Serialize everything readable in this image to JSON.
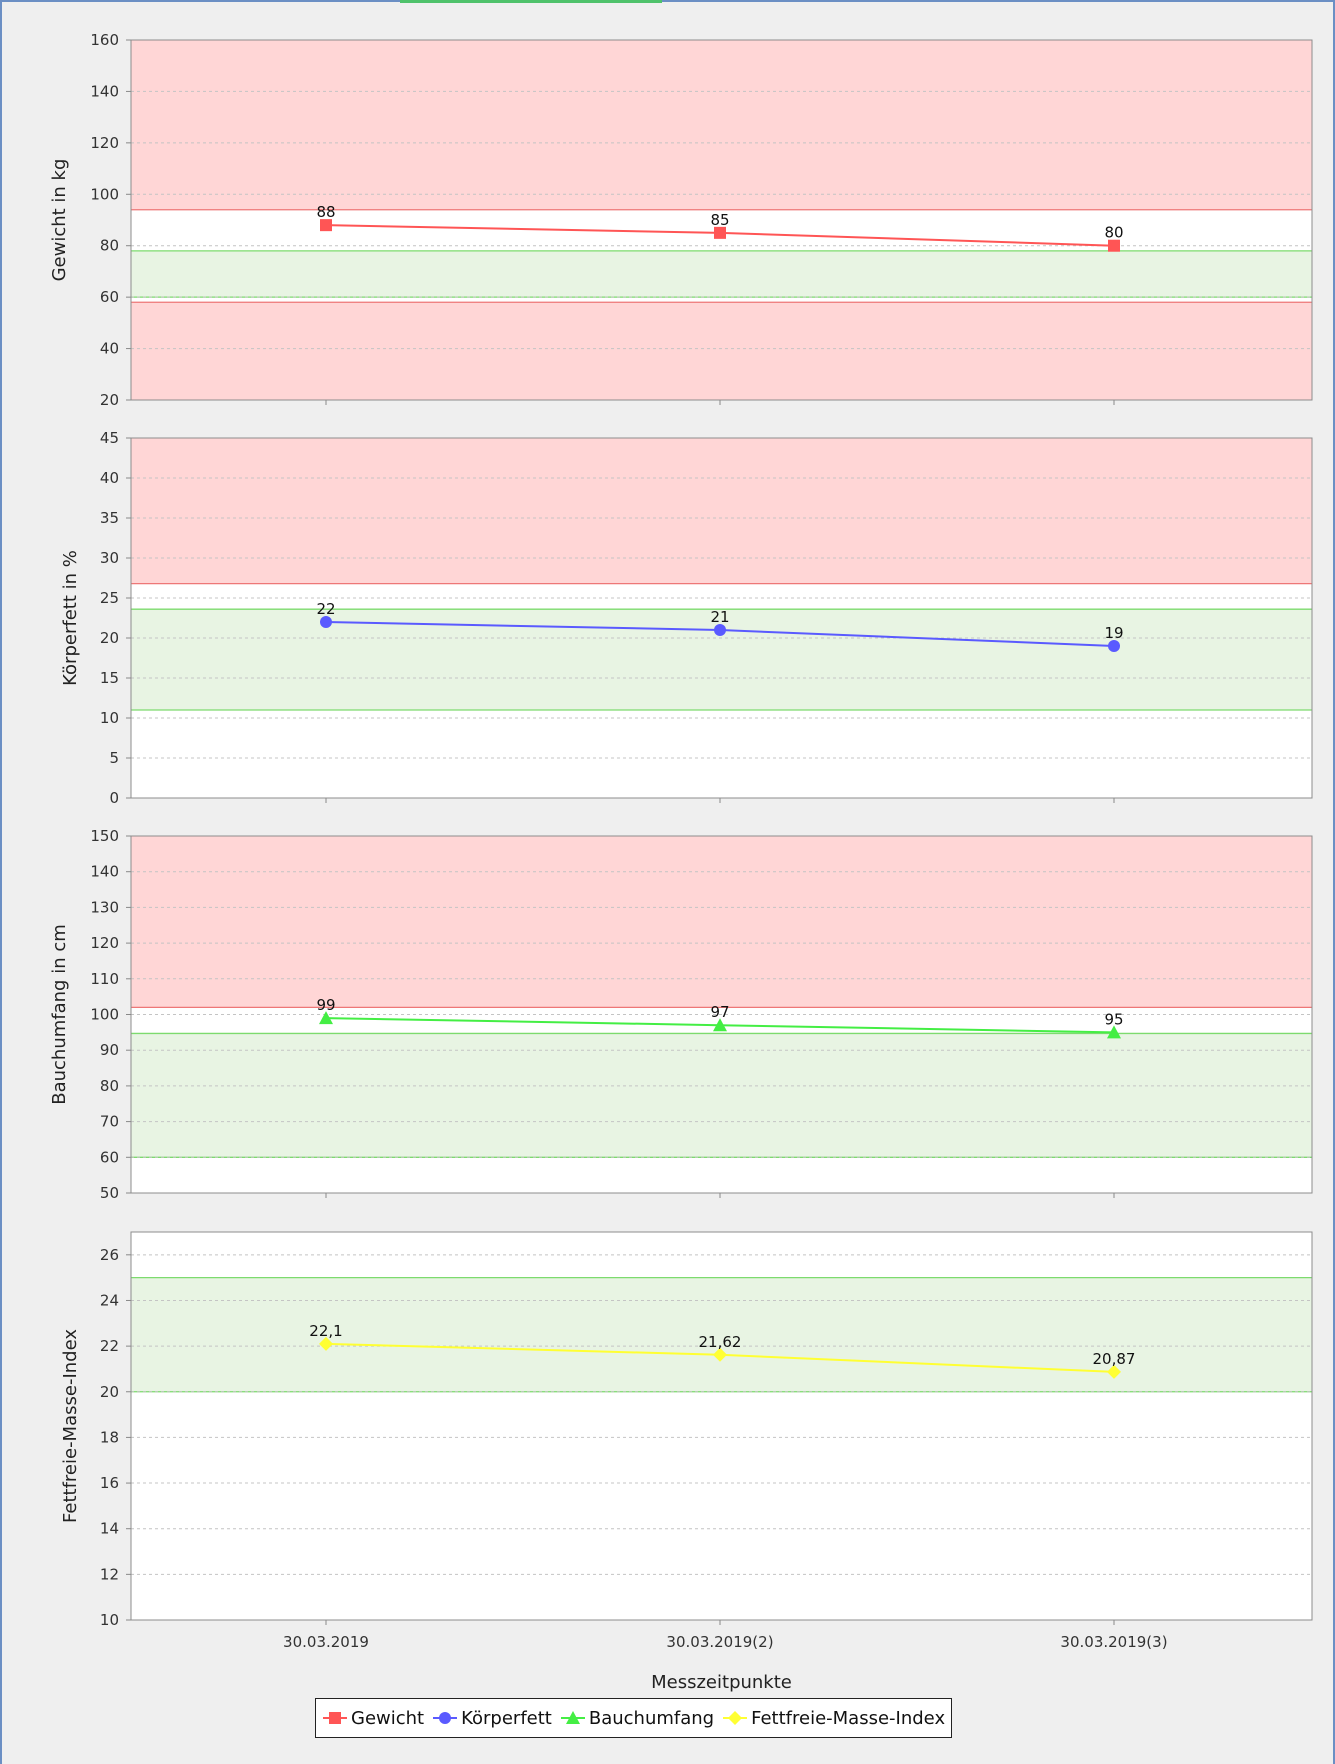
{
  "chart_data": {
    "type": "line",
    "categories": [
      "30.03.2019",
      "30.03.2019(2)",
      "30.03.2019(3)"
    ],
    "xlabel": "Messzeitpunkte",
    "legend_position": "bottom",
    "grid": true,
    "panels": [
      {
        "ylabel": "Gewicht in kg",
        "ylim": [
          20,
          160
        ],
        "ticks": [
          20,
          40,
          60,
          80,
          100,
          120,
          140,
          160
        ],
        "series": {
          "name": "Gewicht",
          "values": [
            88,
            85,
            80
          ],
          "labels": [
            "88",
            "85",
            "80"
          ],
          "color": "#ff5555",
          "marker": "square"
        },
        "bands": [
          {
            "from": 94,
            "to": 160,
            "color": "#ffd6d6",
            "line": "#ee7777"
          },
          {
            "from": 60,
            "to": 78,
            "color": "#e8f4e3",
            "line": "#7ddb6e"
          },
          {
            "from": 20,
            "to": 58,
            "color": "#ffd6d6",
            "line": "#ee7777"
          }
        ]
      },
      {
        "ylabel": "Körperfett in %",
        "ylim": [
          0,
          45
        ],
        "ticks": [
          0,
          5,
          10,
          15,
          20,
          25,
          30,
          35,
          40,
          45
        ],
        "series": {
          "name": "Körperfett",
          "values": [
            22,
            21,
            19
          ],
          "labels": [
            "22",
            "21",
            "19"
          ],
          "color": "#5a5aff",
          "marker": "circle"
        },
        "bands": [
          {
            "from": 26.8,
            "to": 45,
            "color": "#ffd6d6",
            "line": "#ee7777"
          },
          {
            "from": 11,
            "to": 23.6,
            "color": "#e8f4e3",
            "line": "#7ddb6e"
          }
        ]
      },
      {
        "ylabel": "Bauchumfang in cm",
        "ylim": [
          50,
          150
        ],
        "ticks": [
          50,
          60,
          70,
          80,
          90,
          100,
          110,
          120,
          130,
          140,
          150
        ],
        "series": {
          "name": "Bauchumfang",
          "values": [
            99,
            97,
            95
          ],
          "labels": [
            "99",
            "97",
            "95"
          ],
          "color": "#44ee44",
          "marker": "triangle"
        },
        "bands": [
          {
            "from": 102,
            "to": 150,
            "color": "#ffd6d6",
            "line": "#ee7777"
          },
          {
            "from": 60,
            "to": 94.7,
            "color": "#e8f4e3",
            "line": "#7ddb6e"
          }
        ]
      },
      {
        "ylabel": "Fettfreie-Masse-Index",
        "ylim": [
          10,
          27
        ],
        "ticks": [
          10,
          12,
          14,
          16,
          18,
          20,
          22,
          24,
          26
        ],
        "series": {
          "name": "Fettfreie-Masse-Index",
          "values": [
            22.1,
            21.62,
            20.87
          ],
          "labels": [
            "22,1",
            "21,62",
            "20,87"
          ],
          "color": "#ffff33",
          "marker": "diamond"
        },
        "bands": [
          {
            "from": 20,
            "to": 25,
            "color": "#e8f4e3",
            "line": "#7ddb6e"
          }
        ]
      }
    ]
  }
}
